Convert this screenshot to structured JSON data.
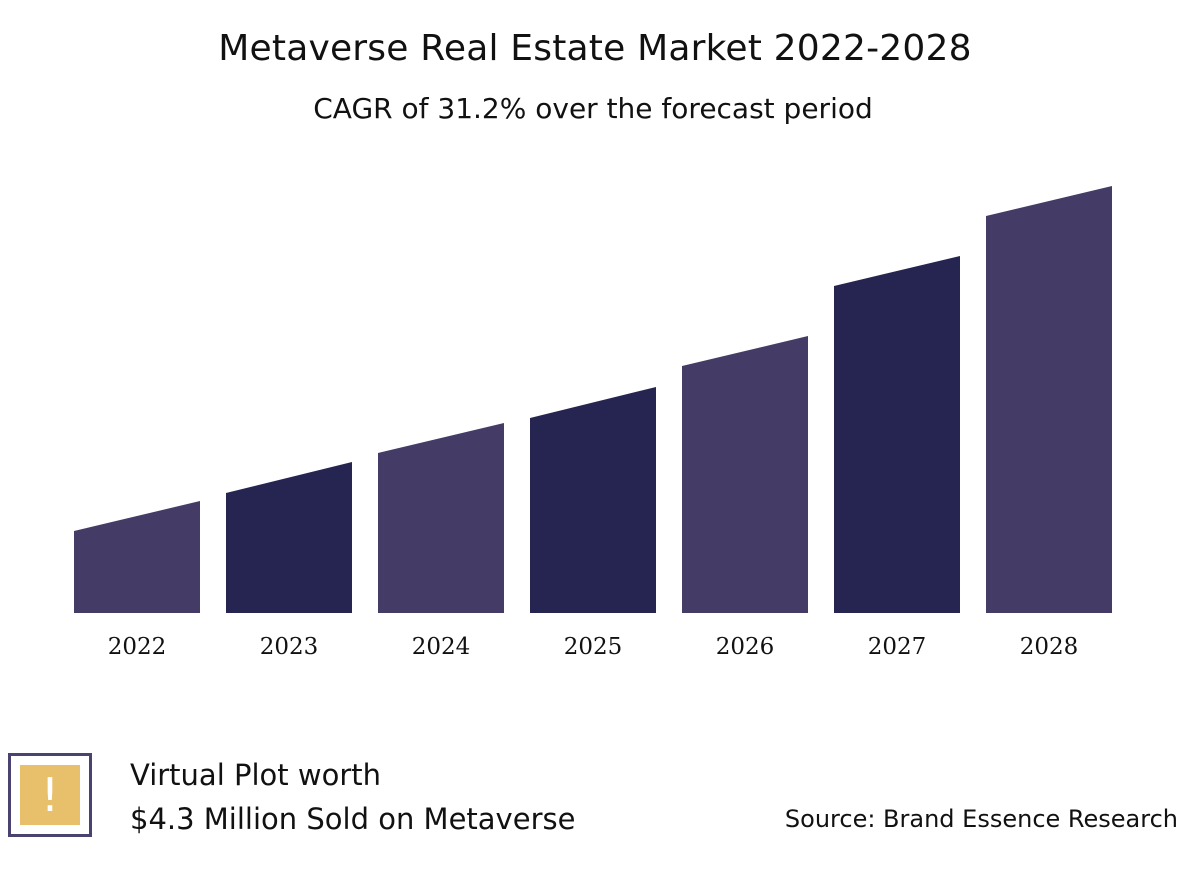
{
  "header": {
    "title": "Metaverse Real Estate Market 2022-2028",
    "subtitle": "CAGR of 31.2% over the forecast period"
  },
  "chart_data": {
    "type": "bar",
    "title": "Metaverse Real Estate Market 2022-2028",
    "subtitle": "CAGR of 31.2% over the forecast period",
    "categories": [
      "2022",
      "2023",
      "2024",
      "2025",
      "2026",
      "2027",
      "2028"
    ],
    "bar_shape": "trapezoid, top edge slanted upward to the right",
    "values_start": [
      82,
      120,
      160,
      195,
      247,
      327,
      397
    ],
    "values_end": [
      112,
      151,
      190,
      226,
      277,
      357,
      427
    ],
    "ylim": [
      0,
      430
    ],
    "y_axis_visible": false,
    "grid": false,
    "legend": "none",
    "colors": [
      "#443c66",
      "#262450",
      "#443c66",
      "#262450",
      "#443c66",
      "#262450",
      "#443c66"
    ]
  },
  "callout": {
    "icon": "exclamation-icon",
    "icon_glyph": "!",
    "line1": "Virtual Plot worth",
    "line2": "$4.3 Million Sold on Metaverse",
    "border_color": "#4a4370",
    "icon_bg_color": "#e8c06b"
  },
  "source": {
    "text": "Source: Brand Essence Research"
  }
}
